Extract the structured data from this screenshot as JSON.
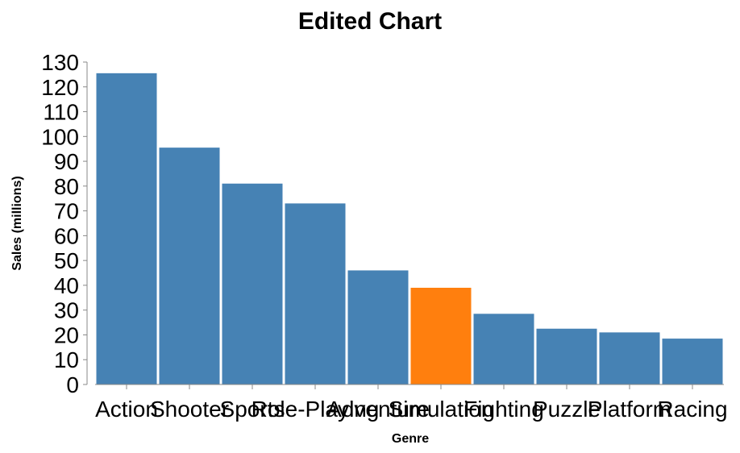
{
  "chart_data": {
    "type": "bar",
    "title": "Edited Chart",
    "xlabel": "Genre",
    "ylabel": "Sales (millions)",
    "categories": [
      "Action",
      "Shooter",
      "Sports",
      "Role-Playing",
      "Adventure",
      "Simulation",
      "Fighting",
      "Puzzle",
      "Platform",
      "Racing"
    ],
    "values": [
      125.5,
      95.5,
      81,
      73,
      46,
      39,
      28.5,
      22.5,
      21,
      18.5
    ],
    "highlight": "Simulation",
    "ylim": [
      0,
      130
    ],
    "yticks": [
      0,
      10,
      20,
      30,
      40,
      50,
      60,
      70,
      80,
      90,
      100,
      110,
      120,
      130
    ],
    "colors": {
      "bar": "#4682b4",
      "highlight": "#ff7f0e",
      "axis": "#888888"
    },
    "grid": false,
    "legend": "none"
  }
}
